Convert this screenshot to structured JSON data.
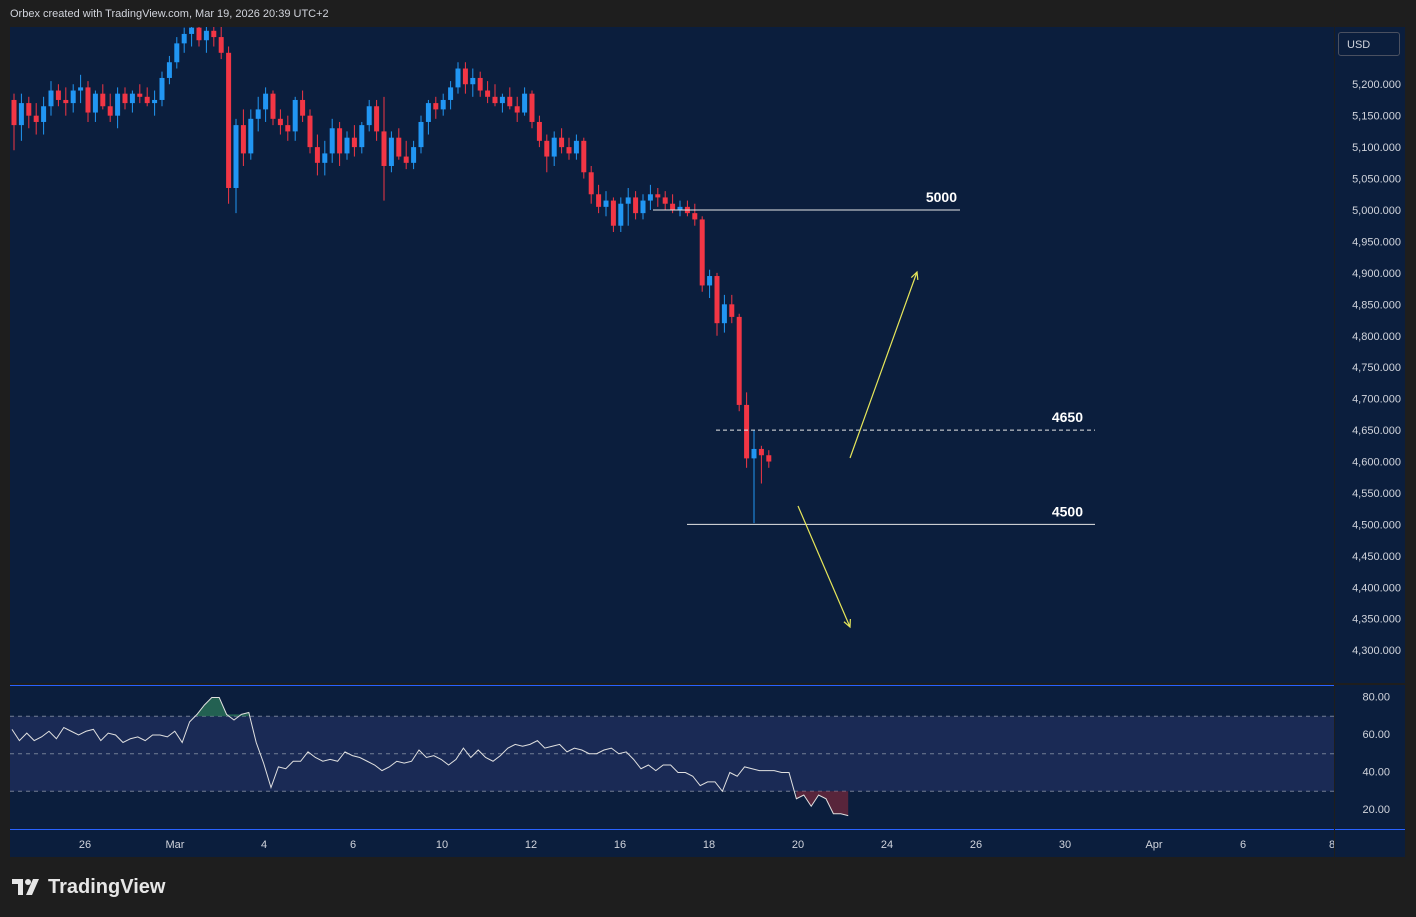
{
  "header": {
    "caption": "Orbex created with TradingView.com, Mar 19, 2026 20:39 UTC+2"
  },
  "currency": "USD",
  "brand": {
    "name": "TradingView"
  },
  "colors": {
    "bull": "#2196f3",
    "bear": "#f23645",
    "background": "#0b1e3d",
    "annotation": "#e6e65a",
    "rsi_line": "#e0e0e0",
    "grid_border": "#2962ff"
  },
  "chart_data": [
    {
      "type": "candlestick",
      "price_axis": {
        "range": [
          4260,
          5300
        ],
        "ticks": [
          "5,200.000",
          "5,150.000",
          "5,100.000",
          "5,050.000",
          "5,000.000",
          "4,950.000",
          "4,900.000",
          "4,850.000",
          "4,800.000",
          "4,750.000",
          "4,700.000",
          "4,650.000",
          "4,600.000",
          "4,550.000",
          "4,500.000",
          "4,450.000",
          "4,400.000",
          "4,350.000",
          "4,300.000"
        ],
        "tick_values": [
          5200,
          5150,
          5100,
          5050,
          5000,
          4950,
          4900,
          4850,
          4800,
          4750,
          4700,
          4650,
          4600,
          4550,
          4500,
          4450,
          4400,
          4350,
          4300
        ]
      },
      "time_axis": {
        "ticks": [
          "26",
          "Mar",
          "4",
          "6",
          "10",
          "12",
          "16",
          "18",
          "20",
          "24",
          "26",
          "30",
          "Apr",
          "6",
          "8"
        ]
      },
      "candles": [
        {
          "o": 5175,
          "h": 5185,
          "l": 5095,
          "c": 5135
        },
        {
          "o": 5135,
          "h": 5185,
          "l": 5110,
          "c": 5170
        },
        {
          "o": 5170,
          "h": 5180,
          "l": 5130,
          "c": 5150
        },
        {
          "o": 5150,
          "h": 5170,
          "l": 5120,
          "c": 5140
        },
        {
          "o": 5140,
          "h": 5180,
          "l": 5120,
          "c": 5165
        },
        {
          "o": 5165,
          "h": 5205,
          "l": 5150,
          "c": 5190
        },
        {
          "o": 5190,
          "h": 5200,
          "l": 5165,
          "c": 5175
        },
        {
          "o": 5175,
          "h": 5195,
          "l": 5150,
          "c": 5170
        },
        {
          "o": 5170,
          "h": 5200,
          "l": 5155,
          "c": 5190
        },
        {
          "o": 5190,
          "h": 5215,
          "l": 5170,
          "c": 5195
        },
        {
          "o": 5195,
          "h": 5205,
          "l": 5140,
          "c": 5155
        },
        {
          "o": 5155,
          "h": 5190,
          "l": 5140,
          "c": 5185
        },
        {
          "o": 5185,
          "h": 5200,
          "l": 5160,
          "c": 5165
        },
        {
          "o": 5165,
          "h": 5185,
          "l": 5140,
          "c": 5150
        },
        {
          "o": 5150,
          "h": 5195,
          "l": 5130,
          "c": 5185
        },
        {
          "o": 5185,
          "h": 5195,
          "l": 5160,
          "c": 5170
        },
        {
          "o": 5170,
          "h": 5190,
          "l": 5155,
          "c": 5185
        },
        {
          "o": 5185,
          "h": 5200,
          "l": 5170,
          "c": 5180
        },
        {
          "o": 5180,
          "h": 5195,
          "l": 5165,
          "c": 5170
        },
        {
          "o": 5170,
          "h": 5190,
          "l": 5150,
          "c": 5175
        },
        {
          "o": 5175,
          "h": 5220,
          "l": 5165,
          "c": 5210
        },
        {
          "o": 5210,
          "h": 5245,
          "l": 5200,
          "c": 5235
        },
        {
          "o": 5235,
          "h": 5275,
          "l": 5225,
          "c": 5265
        },
        {
          "o": 5265,
          "h": 5290,
          "l": 5250,
          "c": 5280
        },
        {
          "o": 5280,
          "h": 5300,
          "l": 5260,
          "c": 5290
        },
        {
          "o": 5290,
          "h": 5300,
          "l": 5260,
          "c": 5270
        },
        {
          "o": 5270,
          "h": 5300,
          "l": 5250,
          "c": 5285
        },
        {
          "o": 5285,
          "h": 5300,
          "l": 5260,
          "c": 5275
        },
        {
          "o": 5275,
          "h": 5300,
          "l": 5240,
          "c": 5250
        },
        {
          "o": 5250,
          "h": 5260,
          "l": 5010,
          "c": 5035
        },
        {
          "o": 5035,
          "h": 5145,
          "l": 4995,
          "c": 5135
        },
        {
          "o": 5135,
          "h": 5160,
          "l": 5070,
          "c": 5090
        },
        {
          "o": 5090,
          "h": 5160,
          "l": 5080,
          "c": 5145
        },
        {
          "o": 5145,
          "h": 5180,
          "l": 5125,
          "c": 5160
        },
        {
          "o": 5160,
          "h": 5195,
          "l": 5140,
          "c": 5185
        },
        {
          "o": 5185,
          "h": 5190,
          "l": 5135,
          "c": 5145
        },
        {
          "o": 5145,
          "h": 5160,
          "l": 5120,
          "c": 5135
        },
        {
          "o": 5135,
          "h": 5150,
          "l": 5110,
          "c": 5125
        },
        {
          "o": 5125,
          "h": 5180,
          "l": 5110,
          "c": 5175
        },
        {
          "o": 5175,
          "h": 5190,
          "l": 5140,
          "c": 5150
        },
        {
          "o": 5150,
          "h": 5160,
          "l": 5090,
          "c": 5100
        },
        {
          "o": 5100,
          "h": 5120,
          "l": 5055,
          "c": 5075
        },
        {
          "o": 5075,
          "h": 5110,
          "l": 5055,
          "c": 5090
        },
        {
          "o": 5090,
          "h": 5145,
          "l": 5075,
          "c": 5130
        },
        {
          "o": 5130,
          "h": 5140,
          "l": 5070,
          "c": 5090
        },
        {
          "o": 5090,
          "h": 5125,
          "l": 5080,
          "c": 5115
        },
        {
          "o": 5115,
          "h": 5135,
          "l": 5085,
          "c": 5100
        },
        {
          "o": 5100,
          "h": 5140,
          "l": 5090,
          "c": 5135
        },
        {
          "o": 5135,
          "h": 5175,
          "l": 5125,
          "c": 5165
        },
        {
          "o": 5165,
          "h": 5175,
          "l": 5110,
          "c": 5125
        },
        {
          "o": 5125,
          "h": 5180,
          "l": 5015,
          "c": 5070
        },
        {
          "o": 5070,
          "h": 5125,
          "l": 5060,
          "c": 5115
        },
        {
          "o": 5115,
          "h": 5130,
          "l": 5080,
          "c": 5085
        },
        {
          "o": 5085,
          "h": 5110,
          "l": 5065,
          "c": 5075
        },
        {
          "o": 5075,
          "h": 5110,
          "l": 5065,
          "c": 5100
        },
        {
          "o": 5100,
          "h": 5150,
          "l": 5090,
          "c": 5140
        },
        {
          "o": 5140,
          "h": 5175,
          "l": 5120,
          "c": 5170
        },
        {
          "o": 5170,
          "h": 5180,
          "l": 5145,
          "c": 5160
        },
        {
          "o": 5160,
          "h": 5185,
          "l": 5150,
          "c": 5175
        },
        {
          "o": 5175,
          "h": 5205,
          "l": 5160,
          "c": 5195
        },
        {
          "o": 5195,
          "h": 5235,
          "l": 5185,
          "c": 5225
        },
        {
          "o": 5225,
          "h": 5235,
          "l": 5185,
          "c": 5200
        },
        {
          "o": 5200,
          "h": 5225,
          "l": 5180,
          "c": 5210
        },
        {
          "o": 5210,
          "h": 5220,
          "l": 5180,
          "c": 5190
        },
        {
          "o": 5190,
          "h": 5205,
          "l": 5170,
          "c": 5180
        },
        {
          "o": 5180,
          "h": 5200,
          "l": 5165,
          "c": 5170
        },
        {
          "o": 5170,
          "h": 5185,
          "l": 5155,
          "c": 5180
        },
        {
          "o": 5180,
          "h": 5195,
          "l": 5160,
          "c": 5165
        },
        {
          "o": 5165,
          "h": 5180,
          "l": 5140,
          "c": 5155
        },
        {
          "o": 5155,
          "h": 5195,
          "l": 5150,
          "c": 5185
        },
        {
          "o": 5185,
          "h": 5190,
          "l": 5130,
          "c": 5140
        },
        {
          "o": 5140,
          "h": 5150,
          "l": 5100,
          "c": 5110
        },
        {
          "o": 5110,
          "h": 5120,
          "l": 5060,
          "c": 5085
        },
        {
          "o": 5085,
          "h": 5125,
          "l": 5070,
          "c": 5115
        },
        {
          "o": 5115,
          "h": 5130,
          "l": 5090,
          "c": 5100
        },
        {
          "o": 5100,
          "h": 5115,
          "l": 5080,
          "c": 5090
        },
        {
          "o": 5090,
          "h": 5120,
          "l": 5080,
          "c": 5110
        },
        {
          "o": 5110,
          "h": 5115,
          "l": 5050,
          "c": 5060
        },
        {
          "o": 5060,
          "h": 5070,
          "l": 5010,
          "c": 5025
        },
        {
          "o": 5025,
          "h": 5040,
          "l": 4995,
          "c": 5005
        },
        {
          "o": 5005,
          "h": 5030,
          "l": 4990,
          "c": 5015
        },
        {
          "o": 5015,
          "h": 5020,
          "l": 4965,
          "c": 4975
        },
        {
          "o": 4975,
          "h": 5020,
          "l": 4965,
          "c": 5010
        },
        {
          "o": 5010,
          "h": 5035,
          "l": 4975,
          "c": 5020
        },
        {
          "o": 5020,
          "h": 5030,
          "l": 4985,
          "c": 4995
        },
        {
          "o": 4995,
          "h": 5025,
          "l": 4985,
          "c": 5015
        },
        {
          "o": 5015,
          "h": 5040,
          "l": 5000,
          "c": 5025
        },
        {
          "o": 5025,
          "h": 5035,
          "l": 5005,
          "c": 5020
        },
        {
          "o": 5020,
          "h": 5030,
          "l": 5000,
          "c": 5010
        },
        {
          "o": 5010,
          "h": 5025,
          "l": 4995,
          "c": 5000
        },
        {
          "o": 5000,
          "h": 5015,
          "l": 4990,
          "c": 5005
        },
        {
          "o": 5005,
          "h": 5015,
          "l": 4990,
          "c": 4995
        },
        {
          "o": 4995,
          "h": 5010,
          "l": 4975,
          "c": 4985
        },
        {
          "o": 4985,
          "h": 4990,
          "l": 4870,
          "c": 4880
        },
        {
          "o": 4880,
          "h": 4905,
          "l": 4860,
          "c": 4895
        },
        {
          "o": 4895,
          "h": 4900,
          "l": 4800,
          "c": 4820
        },
        {
          "o": 4820,
          "h": 4865,
          "l": 4805,
          "c": 4850
        },
        {
          "o": 4850,
          "h": 4865,
          "l": 4820,
          "c": 4830
        },
        {
          "o": 4830,
          "h": 4835,
          "l": 4680,
          "c": 4690
        },
        {
          "o": 4690,
          "h": 4710,
          "l": 4590,
          "c": 4605
        },
        {
          "o": 4605,
          "h": 4650,
          "l": 4502,
          "c": 4620
        },
        {
          "o": 4620,
          "h": 4625,
          "l": 4565,
          "c": 4610
        },
        {
          "o": 4610,
          "h": 4618,
          "l": 4590,
          "c": 4600
        }
      ],
      "horizontal_levels": [
        {
          "label": "5000",
          "value": 5000,
          "style": "solid"
        },
        {
          "label": "4650",
          "value": 4650,
          "style": "dashed"
        },
        {
          "label": "4500",
          "value": 4500,
          "style": "solid"
        }
      ],
      "annotations": [
        {
          "type": "arrow",
          "direction": "up",
          "from": [
            4612,
            "Mar 22"
          ],
          "to": [
            4900,
            "Mar 24"
          ]
        },
        {
          "type": "arrow",
          "direction": "down",
          "from": [
            4530,
            "Mar 20"
          ],
          "to": [
            4340,
            "Mar 21"
          ]
        }
      ]
    },
    {
      "type": "line",
      "name": "RSI",
      "y_axis": {
        "range": [
          10,
          90
        ],
        "ticks": [
          "80.00",
          "60.00",
          "40.00",
          "20.00"
        ],
        "tick_values": [
          80,
          60,
          40,
          20
        ]
      },
      "bands": {
        "upper": 70,
        "middle": 50,
        "lower": 30
      },
      "values": [
        63,
        57,
        61,
        57,
        59,
        62,
        58,
        64,
        62,
        60,
        62,
        63,
        57,
        61,
        60,
        56,
        58,
        59,
        57,
        60,
        60,
        59,
        62,
        56,
        67,
        71,
        76,
        80,
        80,
        71,
        68,
        71,
        72,
        56,
        45,
        32,
        43,
        42,
        46,
        46,
        51,
        48,
        46,
        47,
        46,
        51,
        49,
        48,
        46,
        44,
        41,
        43,
        46,
        45,
        46,
        52,
        48,
        49,
        47,
        44,
        47,
        53,
        48,
        52,
        48,
        46,
        49,
        53,
        55,
        54,
        55,
        57,
        53,
        54,
        55,
        51,
        53,
        52,
        50,
        50,
        52,
        53,
        50,
        51,
        47,
        42,
        44,
        41,
        44,
        44,
        40,
        40,
        38,
        33,
        35,
        35,
        30,
        40,
        38,
        43,
        42,
        41,
        41,
        41,
        40,
        40,
        26,
        28,
        22,
        28,
        26,
        18,
        18,
        17
      ]
    }
  ]
}
